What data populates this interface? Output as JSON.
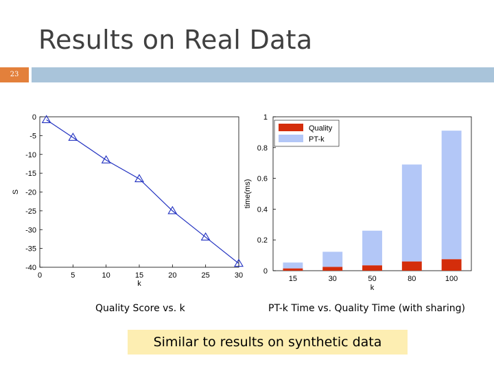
{
  "slide": {
    "title": "Results on Real Data",
    "number": "23",
    "caption_left": "Quality Score vs. k",
    "caption_right": "PT-k Time vs. Quality Time (with sharing)",
    "callout": "Similar to results on synthetic data",
    "colors": {
      "accent": "#e3803b",
      "bar": "#a9c4da",
      "callout_bg": "#fdeeb2"
    }
  },
  "chart_data": [
    {
      "type": "line",
      "title": "",
      "xlabel": "k",
      "ylabel": "S",
      "xlim": [
        0,
        30
      ],
      "ylim": [
        -40,
        0
      ],
      "xticks": [
        0,
        5,
        10,
        15,
        20,
        25,
        30
      ],
      "yticks": [
        0,
        -5,
        -10,
        -15,
        -20,
        -25,
        -30,
        -35,
        -40
      ],
      "grid": false,
      "series": [
        {
          "x": [
            1,
            5,
            10,
            15,
            20,
            25,
            30
          ],
          "values": [
            -0.8,
            -5.5,
            -11.5,
            -16.5,
            -25,
            -32,
            -39
          ],
          "color": "#2030c0",
          "marker": "triangle"
        }
      ]
    },
    {
      "type": "bar",
      "title": "",
      "xlabel": "k",
      "ylabel": "time(ms)",
      "ylim": [
        0,
        1
      ],
      "yticks": [
        0,
        0.2,
        0.4,
        0.6,
        0.8,
        1
      ],
      "categories": [
        "15",
        "30",
        "50",
        "80",
        "100"
      ],
      "stacked": true,
      "legend": "top-left",
      "series": [
        {
          "name": "Quality",
          "color": "#d42d0b",
          "values": [
            0.015,
            0.025,
            0.035,
            0.06,
            0.075
          ]
        },
        {
          "name": "PT-k",
          "color": "#b3c7f7",
          "values": [
            0.038,
            0.098,
            0.225,
            0.63,
            0.835
          ]
        }
      ]
    }
  ]
}
